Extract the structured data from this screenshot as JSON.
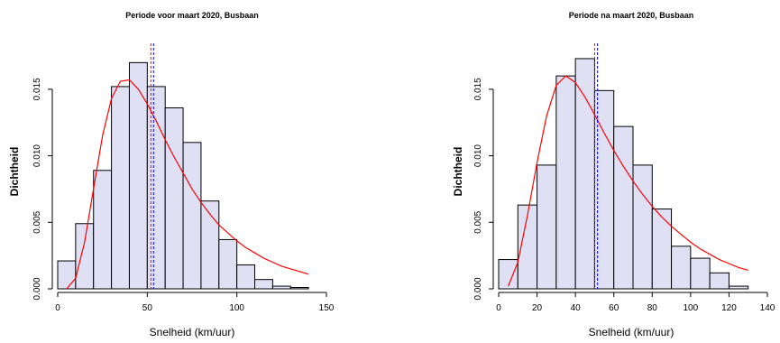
{
  "chart_data": [
    {
      "type": "bar",
      "title": "Periode voor maart 2020, Busbaan",
      "xlabel": "Snelheid (km/uur)",
      "ylabel": "Dichtheid",
      "xlim": [
        0,
        150
      ],
      "ylim": [
        0,
        0.0175
      ],
      "xticks": [
        "0",
        "50",
        "100",
        "150"
      ],
      "yticks": [
        "0.000",
        "0.005",
        "0.010",
        "0.015"
      ],
      "bin_edges": [
        0,
        10,
        20,
        30,
        40,
        50,
        60,
        70,
        80,
        90,
        100,
        110,
        120,
        130,
        140
      ],
      "density": [
        0.0021,
        0.0049,
        0.0089,
        0.0152,
        0.017,
        0.0152,
        0.0136,
        0.011,
        0.0066,
        0.0037,
        0.0018,
        0.0007,
        0.0002,
        0.0001
      ],
      "density_curve": {
        "name": "",
        "color": "#ff0000",
        "points": [
          [
            5,
            0
          ],
          [
            10,
            0.0008
          ],
          [
            15,
            0.0035
          ],
          [
            20,
            0.0075
          ],
          [
            25,
            0.0115
          ],
          [
            30,
            0.0143
          ],
          [
            35,
            0.0156
          ],
          [
            40,
            0.0157
          ],
          [
            45,
            0.015
          ],
          [
            50,
            0.0139
          ],
          [
            55,
            0.0126
          ],
          [
            60,
            0.0112
          ],
          [
            65,
            0.0099
          ],
          [
            70,
            0.0087
          ],
          [
            75,
            0.0075
          ],
          [
            80,
            0.0065
          ],
          [
            85,
            0.0056
          ],
          [
            90,
            0.0048
          ],
          [
            95,
            0.0042
          ],
          [
            100,
            0.0036
          ],
          [
            105,
            0.0031
          ],
          [
            110,
            0.0027
          ],
          [
            115,
            0.0023
          ],
          [
            120,
            0.002
          ],
          [
            125,
            0.0017
          ],
          [
            130,
            0.0015
          ],
          [
            135,
            0.0013
          ],
          [
            140,
            0.0011
          ]
        ]
      },
      "vlines": [
        {
          "x": 52,
          "color": "#ff0000"
        },
        {
          "x": 53.5,
          "color": "#0000ff"
        }
      ],
      "bar_fill": "#e0e0f5",
      "bar_stroke": "#000000"
    },
    {
      "type": "bar",
      "title": "Periode na maart 2020, Busbaan",
      "xlabel": "Snelheid (km/uur)",
      "ylabel": "Dichtheid",
      "xlim": [
        0,
        140
      ],
      "ylim": [
        0,
        0.0175
      ],
      "xticks": [
        "0",
        "20",
        "40",
        "60",
        "80",
        "100",
        "120",
        "140"
      ],
      "yticks": [
        "0.000",
        "0.005",
        "0.010",
        "0.015"
      ],
      "bin_edges": [
        0,
        10,
        20,
        30,
        40,
        50,
        60,
        70,
        80,
        90,
        100,
        110,
        120,
        130
      ],
      "density": [
        0.0022,
        0.0063,
        0.0093,
        0.016,
        0.0173,
        0.0149,
        0.0122,
        0.0093,
        0.006,
        0.0032,
        0.0023,
        0.0012,
        0.0002
      ],
      "density_curve": {
        "name": "",
        "color": "#ff0000",
        "points": [
          [
            5,
            0.0002
          ],
          [
            10,
            0.002
          ],
          [
            15,
            0.0055
          ],
          [
            20,
            0.0095
          ],
          [
            25,
            0.013
          ],
          [
            30,
            0.0153
          ],
          [
            35,
            0.016
          ],
          [
            40,
            0.0155
          ],
          [
            45,
            0.0144
          ],
          [
            50,
            0.0131
          ],
          [
            55,
            0.0117
          ],
          [
            60,
            0.0104
          ],
          [
            65,
            0.0092
          ],
          [
            70,
            0.0081
          ],
          [
            75,
            0.0071
          ],
          [
            80,
            0.0062
          ],
          [
            85,
            0.0054
          ],
          [
            90,
            0.0047
          ],
          [
            95,
            0.0041
          ],
          [
            100,
            0.0035
          ],
          [
            105,
            0.003
          ],
          [
            110,
            0.0026
          ],
          [
            115,
            0.0022
          ],
          [
            120,
            0.0019
          ],
          [
            125,
            0.0016
          ],
          [
            130,
            0.0014
          ]
        ]
      },
      "vlines": [
        {
          "x": 50,
          "color": "#ff0000"
        },
        {
          "x": 51.5,
          "color": "#0000ff"
        }
      ],
      "bar_fill": "#e0e0f5",
      "bar_stroke": "#000000"
    }
  ]
}
